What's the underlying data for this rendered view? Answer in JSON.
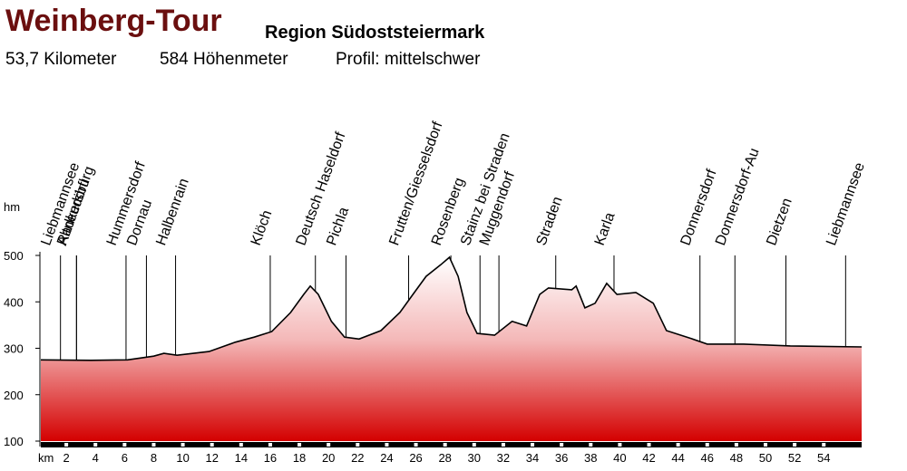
{
  "chart_data": {
    "type": "area",
    "title": "Weinberg-Tour",
    "subtitle": "Region Südoststeiermark",
    "stats": [
      "53,7 Kilometer",
      "584 Höhenmeter",
      "Profil: mittelschwer"
    ],
    "ylabel": "hm",
    "xlabel": "km",
    "x": [
      0.25,
      3.7,
      6.2,
      8.0,
      8.7,
      9.6,
      11.8,
      13.6,
      14.9,
      16.1,
      17.4,
      18.3,
      18.75,
      19.3,
      20.2,
      21.1,
      22.1,
      23.6,
      24.9,
      25.8,
      26.7,
      27.7,
      28.3,
      28.9,
      29.5,
      30.2,
      31.4,
      32.6,
      33.6,
      34.5,
      35.1,
      36.7,
      37.0,
      37.6,
      38.3,
      39.1,
      39.8,
      41.1,
      42.3,
      43.2,
      44.8,
      46.0,
      48.5,
      51.7,
      56.6
    ],
    "values": [
      275,
      274,
      275,
      283,
      289,
      285,
      293,
      313,
      324,
      336,
      377,
      416,
      434,
      416,
      358,
      324,
      320,
      338,
      377,
      416,
      455,
      480,
      496,
      455,
      377,
      332,
      328,
      358,
      348,
      416,
      430,
      426,
      434,
      387,
      397,
      440,
      416,
      420,
      397,
      338,
      322,
      309,
      309,
      305,
      303
    ],
    "places": [
      {
        "name": "Liebmannsee",
        "km": 1.6
      },
      {
        "name": "Altneudörfl",
        "km": 2.7
      },
      {
        "name": "Radkersburg",
        "km": 2.7
      },
      {
        "name": "Hummersdorf",
        "km": 6.1
      },
      {
        "name": "Dornau",
        "km": 7.5
      },
      {
        "name": "Halbenrain",
        "km": 9.5
      },
      {
        "name": "Klöch",
        "km": 16.0
      },
      {
        "name": "Deutsch Haseldorf",
        "km": 19.1
      },
      {
        "name": "Pichla",
        "km": 21.2
      },
      {
        "name": "Frutten/Giesselsdorf",
        "km": 25.5
      },
      {
        "name": "Rosenberg",
        "km": 28.4
      },
      {
        "name": "Stainz bei Straden",
        "km": 30.4
      },
      {
        "name": "Muggendorf",
        "km": 31.7
      },
      {
        "name": "Straden",
        "km": 35.6
      },
      {
        "name": "Karla",
        "km": 39.6
      },
      {
        "name": "Donnersdorf",
        "km": 45.5
      },
      {
        "name": "Donnersdorf-Au",
        "km": 47.9
      },
      {
        "name": "Dietzen",
        "km": 51.4
      },
      {
        "name": "Liebmannsee",
        "km": 55.5
      }
    ],
    "xlim": [
      0.25,
      56.6
    ],
    "ylim": [
      100,
      500
    ],
    "xticks": [
      2,
      4,
      6,
      8,
      10,
      12,
      14,
      16,
      18,
      20,
      22,
      24,
      26,
      28,
      30,
      32,
      34,
      36,
      38,
      40,
      42,
      44,
      46,
      48,
      50,
      52,
      54
    ],
    "yticks": [
      100,
      200,
      300,
      400,
      500
    ],
    "color": "#d40000",
    "line_color": "#000000",
    "title_color": "#6b0f0f"
  }
}
